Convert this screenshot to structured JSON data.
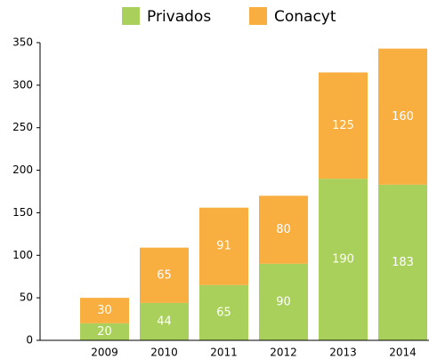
{
  "chart_data": {
    "type": "stacked_bar",
    "categories": [
      "2009",
      "2010",
      "2011",
      "2012",
      "2013",
      "2014"
    ],
    "series": [
      {
        "name": "Privados",
        "color": "#a8d05a",
        "values": [
          20,
          44,
          65,
          90,
          190,
          183
        ]
      },
      {
        "name": "Conacyt",
        "color": "#f9ae40",
        "values": [
          30,
          65,
          91,
          80,
          125,
          160
        ]
      }
    ],
    "ylim": [
      0,
      350
    ],
    "yticks": [
      0,
      50,
      100,
      150,
      200,
      250,
      300,
      350
    ],
    "legend": "top"
  }
}
